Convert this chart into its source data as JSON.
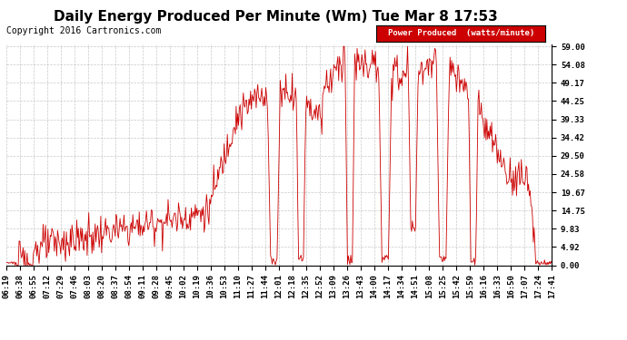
{
  "title": "Daily Energy Produced Per Minute (Wm) Tue Mar 8 17:53",
  "copyright": "Copyright 2016 Cartronics.com",
  "legend_label": "Power Produced  (watts/minute)",
  "legend_bg": "#cc0000",
  "legend_fg": "#ffffff",
  "line_color": "#cc0000",
  "bg_color": "#ffffff",
  "grid_color": "#bbbbbb",
  "ymin": 0.0,
  "ymax": 59.0,
  "yticks": [
    0.0,
    4.92,
    9.83,
    14.75,
    19.67,
    24.58,
    29.5,
    34.42,
    39.33,
    44.25,
    49.17,
    54.08,
    59.0
  ],
  "ytick_labels": [
    "0.00",
    "4.92",
    "9.83",
    "14.75",
    "19.67",
    "24.58",
    "29.50",
    "34.42",
    "39.33",
    "44.25",
    "49.17",
    "54.08",
    "59.00"
  ],
  "xtick_labels": [
    "06:19",
    "06:38",
    "06:55",
    "07:12",
    "07:29",
    "07:46",
    "08:03",
    "08:20",
    "08:37",
    "08:54",
    "09:11",
    "09:28",
    "09:45",
    "10:02",
    "10:19",
    "10:36",
    "10:53",
    "11:10",
    "11:27",
    "11:44",
    "12:01",
    "12:18",
    "12:35",
    "12:52",
    "13:09",
    "13:26",
    "13:43",
    "14:00",
    "14:17",
    "14:34",
    "14:51",
    "15:08",
    "15:25",
    "15:42",
    "15:59",
    "16:16",
    "16:33",
    "16:50",
    "17:07",
    "17:24",
    "17:41"
  ],
  "title_fontsize": 11,
  "axis_fontsize": 6.5,
  "copyright_fontsize": 7
}
